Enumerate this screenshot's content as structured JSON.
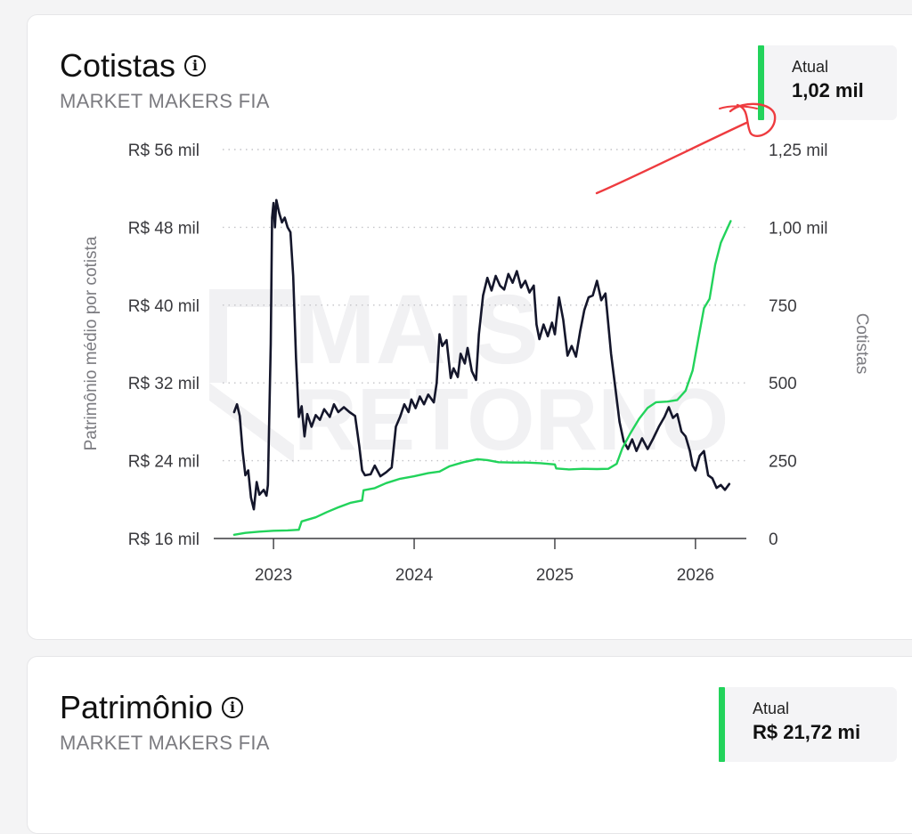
{
  "cards": [
    {
      "title": "Cotistas",
      "subtitle": "MARKET MAKERS FIA",
      "current_label": "Atual",
      "current_value": "1,02 mil",
      "accent_color": "#22d35b"
    },
    {
      "title": "Patrimônio",
      "subtitle": "MARKET MAKERS FIA",
      "current_label": "Atual",
      "current_value": "R$ 21,72 mi",
      "accent_color": "#22d35b"
    }
  ],
  "watermark": [
    "MAIS",
    "RETORNO"
  ],
  "chart_data": {
    "type": "line",
    "left_axis": {
      "title": "Patrimônio médio por cotista",
      "range": [
        16,
        56
      ],
      "ticks": [
        16,
        24,
        32,
        40,
        48,
        56
      ],
      "tick_labels": [
        "R$ 16 mil",
        "R$ 24 mil",
        "R$ 32 mil",
        "R$ 40 mil",
        "R$ 48 mil",
        "R$ 56 mil"
      ]
    },
    "right_axis": {
      "title": "Cotistas",
      "range": [
        0,
        1250
      ],
      "ticks": [
        0,
        250,
        500,
        750,
        1000,
        1250
      ],
      "tick_labels": [
        "0",
        "250",
        "500",
        "750",
        "1,00 mil",
        "1,25 mil"
      ]
    },
    "x_axis": {
      "range": [
        2022.67,
        2026.33
      ],
      "ticks": [
        2023,
        2024,
        2025,
        2026
      ],
      "tick_labels": [
        "2023",
        "2024",
        "2025",
        "2026"
      ]
    },
    "grid": "horizontal-dotted",
    "series": [
      {
        "axis": "left",
        "color": "#14162b",
        "points": [
          [
            2022.72,
            29.0
          ],
          [
            2022.74,
            29.8
          ],
          [
            2022.76,
            28.6
          ],
          [
            2022.78,
            25.0
          ],
          [
            2022.8,
            22.5
          ],
          [
            2022.82,
            23.0
          ],
          [
            2022.84,
            20.2
          ],
          [
            2022.86,
            19.0
          ],
          [
            2022.88,
            21.8
          ],
          [
            2022.9,
            20.5
          ],
          [
            2022.93,
            21.0
          ],
          [
            2022.95,
            20.4
          ],
          [
            2022.96,
            21.5
          ],
          [
            2022.98,
            36.0
          ],
          [
            2022.99,
            49.0
          ],
          [
            2023.0,
            50.5
          ],
          [
            2023.01,
            48.0
          ],
          [
            2023.02,
            50.8
          ],
          [
            2023.04,
            49.5
          ],
          [
            2023.06,
            48.5
          ],
          [
            2023.08,
            49.0
          ],
          [
            2023.1,
            48.0
          ],
          [
            2023.12,
            47.5
          ],
          [
            2023.14,
            43.0
          ],
          [
            2023.16,
            34.5
          ],
          [
            2023.18,
            28.5
          ],
          [
            2023.2,
            29.6
          ],
          [
            2023.22,
            26.5
          ],
          [
            2023.24,
            28.8
          ],
          [
            2023.27,
            27.5
          ],
          [
            2023.3,
            28.7
          ],
          [
            2023.33,
            28.2
          ],
          [
            2023.36,
            29.3
          ],
          [
            2023.4,
            28.5
          ],
          [
            2023.43,
            29.8
          ],
          [
            2023.46,
            29.0
          ],
          [
            2023.5,
            29.5
          ],
          [
            2023.54,
            29.0
          ],
          [
            2023.58,
            28.6
          ],
          [
            2023.61,
            25.5
          ],
          [
            2023.63,
            23.0
          ],
          [
            2023.65,
            22.5
          ],
          [
            2023.69,
            22.6
          ],
          [
            2023.72,
            23.5
          ],
          [
            2023.76,
            22.4
          ],
          [
            2023.8,
            22.8
          ],
          [
            2023.84,
            23.3
          ],
          [
            2023.87,
            27.5
          ],
          [
            2023.9,
            28.5
          ],
          [
            2023.93,
            29.8
          ],
          [
            2023.96,
            29.0
          ],
          [
            2023.98,
            30.3
          ],
          [
            2024.01,
            29.4
          ],
          [
            2024.04,
            30.6
          ],
          [
            2024.07,
            29.8
          ],
          [
            2024.1,
            30.8
          ],
          [
            2024.14,
            30.0
          ],
          [
            2024.16,
            32.0
          ],
          [
            2024.18,
            37.0
          ],
          [
            2024.2,
            35.8
          ],
          [
            2024.23,
            36.4
          ],
          [
            2024.26,
            32.5
          ],
          [
            2024.28,
            33.5
          ],
          [
            2024.31,
            32.6
          ],
          [
            2024.33,
            35.0
          ],
          [
            2024.36,
            34.0
          ],
          [
            2024.38,
            35.6
          ],
          [
            2024.41,
            33.2
          ],
          [
            2024.44,
            32.3
          ],
          [
            2024.46,
            37.0
          ],
          [
            2024.49,
            41.0
          ],
          [
            2024.52,
            42.8
          ],
          [
            2024.55,
            41.5
          ],
          [
            2024.58,
            43.0
          ],
          [
            2024.61,
            42.0
          ],
          [
            2024.64,
            41.6
          ],
          [
            2024.67,
            43.2
          ],
          [
            2024.7,
            42.3
          ],
          [
            2024.73,
            43.5
          ],
          [
            2024.76,
            41.8
          ],
          [
            2024.79,
            42.5
          ],
          [
            2024.82,
            41.3
          ],
          [
            2024.85,
            42.0
          ],
          [
            2024.87,
            38.0
          ],
          [
            2024.89,
            36.5
          ],
          [
            2024.92,
            38.0
          ],
          [
            2024.95,
            36.8
          ],
          [
            2024.98,
            38.2
          ],
          [
            2025.0,
            37.0
          ],
          [
            2025.03,
            40.8
          ],
          [
            2025.06,
            38.5
          ],
          [
            2025.09,
            34.8
          ],
          [
            2025.12,
            35.8
          ],
          [
            2025.15,
            34.7
          ],
          [
            2025.18,
            37.3
          ],
          [
            2025.21,
            39.5
          ],
          [
            2025.24,
            40.8
          ],
          [
            2025.27,
            41.0
          ],
          [
            2025.3,
            42.5
          ],
          [
            2025.33,
            40.5
          ],
          [
            2025.36,
            41.2
          ],
          [
            2025.4,
            35.0
          ],
          [
            2025.43,
            31.5
          ],
          [
            2025.46,
            28.0
          ],
          [
            2025.49,
            26.0
          ],
          [
            2025.52,
            25.2
          ],
          [
            2025.55,
            26.2
          ],
          [
            2025.58,
            25.0
          ],
          [
            2025.62,
            26.3
          ],
          [
            2025.66,
            25.2
          ],
          [
            2025.7,
            26.3
          ],
          [
            2025.74,
            27.5
          ],
          [
            2025.78,
            28.5
          ],
          [
            2025.81,
            29.5
          ],
          [
            2025.84,
            28.4
          ],
          [
            2025.87,
            28.8
          ],
          [
            2025.9,
            27.0
          ],
          [
            2025.93,
            26.5
          ],
          [
            2025.96,
            25.0
          ],
          [
            2025.98,
            23.5
          ],
          [
            2026.0,
            23.0
          ],
          [
            2026.03,
            24.5
          ],
          [
            2026.06,
            25.0
          ],
          [
            2026.09,
            22.5
          ],
          [
            2026.12,
            22.2
          ],
          [
            2026.15,
            21.2
          ],
          [
            2026.18,
            21.5
          ],
          [
            2026.21,
            21.0
          ],
          [
            2026.24,
            21.6
          ]
        ]
      },
      {
        "axis": "right",
        "color": "#22d35b",
        "points": [
          [
            2022.72,
            12
          ],
          [
            2022.8,
            18
          ],
          [
            2022.9,
            22
          ],
          [
            2023.0,
            25
          ],
          [
            2023.1,
            26
          ],
          [
            2023.18,
            28
          ],
          [
            2023.2,
            55
          ],
          [
            2023.3,
            68
          ],
          [
            2023.38,
            85
          ],
          [
            2023.46,
            100
          ],
          [
            2023.55,
            115
          ],
          [
            2023.63,
            122
          ],
          [
            2023.64,
            155
          ],
          [
            2023.72,
            162
          ],
          [
            2023.8,
            178
          ],
          [
            2023.9,
            192
          ],
          [
            2024.0,
            200
          ],
          [
            2024.1,
            210
          ],
          [
            2024.18,
            215
          ],
          [
            2024.25,
            232
          ],
          [
            2024.35,
            245
          ],
          [
            2024.45,
            255
          ],
          [
            2024.52,
            252
          ],
          [
            2024.6,
            245
          ],
          [
            2024.7,
            244
          ],
          [
            2024.8,
            244
          ],
          [
            2024.9,
            242
          ],
          [
            2025.0,
            238
          ],
          [
            2025.01,
            225
          ],
          [
            2025.1,
            222
          ],
          [
            2025.2,
            224
          ],
          [
            2025.3,
            223
          ],
          [
            2025.38,
            224
          ],
          [
            2025.44,
            240
          ],
          [
            2025.48,
            290
          ],
          [
            2025.54,
            340
          ],
          [
            2025.6,
            385
          ],
          [
            2025.66,
            420
          ],
          [
            2025.72,
            438
          ],
          [
            2025.8,
            440
          ],
          [
            2025.87,
            445
          ],
          [
            2025.93,
            475
          ],
          [
            2025.98,
            540
          ],
          [
            2026.02,
            640
          ],
          [
            2026.06,
            740
          ],
          [
            2026.1,
            770
          ],
          [
            2026.14,
            880
          ],
          [
            2026.18,
            950
          ],
          [
            2026.22,
            990
          ],
          [
            2026.25,
            1020
          ]
        ]
      }
    ]
  }
}
